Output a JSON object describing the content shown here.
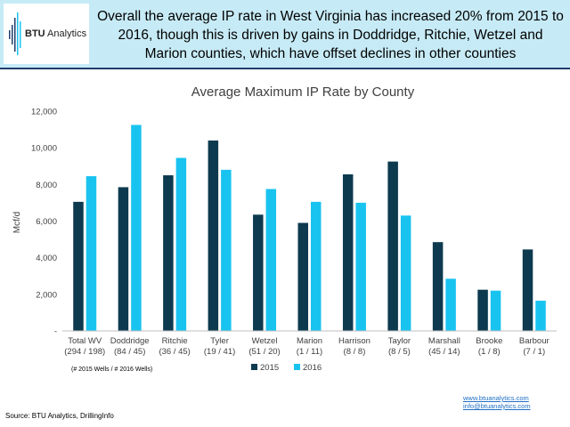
{
  "header": {
    "logo_bold": "BTU",
    "logo_rest": " Analytics",
    "headline": "Overall the average IP rate in West Virginia has increased 20% from 2015 to 2016, though this is driven by gains in Doddridge, Ritchie, Wetzel and Marion counties, which have offset declines in other counties"
  },
  "chart_data": {
    "type": "bar",
    "title": "Average Maximum IP Rate by County",
    "ylabel": "Mcf/d",
    "xlabel": "",
    "ylim": [
      0,
      12000
    ],
    "yticks": [
      0,
      2000,
      4000,
      6000,
      8000,
      10000,
      12000
    ],
    "ytick_labels": [
      "-",
      "2,000",
      "4,000",
      "6,000",
      "8,000",
      "10,000",
      "12,000"
    ],
    "categories": [
      {
        "name": "Total WV",
        "wells": "(294 / 198)"
      },
      {
        "name": "Doddridge",
        "wells": "(84 / 45)"
      },
      {
        "name": "Ritchie",
        "wells": "(36 / 45)"
      },
      {
        "name": "Tyler",
        "wells": "(19 / 41)"
      },
      {
        "name": "Wetzel",
        "wells": "(51 / 20)"
      },
      {
        "name": "Marion",
        "wells": "(1 / 11)"
      },
      {
        "name": "Harrison",
        "wells": "(8 / 8)"
      },
      {
        "name": "Taylor",
        "wells": "(8 / 5)"
      },
      {
        "name": "Marshall",
        "wells": "(45 / 14)"
      },
      {
        "name": "Brooke",
        "wells": "(1 / 8)"
      },
      {
        "name": "Barbour",
        "wells": "(7 / 1)"
      }
    ],
    "series": [
      {
        "name": "2015",
        "color": "#0d3a4f",
        "values": [
          7050,
          7850,
          8500,
          10400,
          6350,
          5900,
          8550,
          9250,
          4850,
          2250,
          4450
        ]
      },
      {
        "name": "2016",
        "color": "#19c3f0",
        "values": [
          8450,
          11250,
          9450,
          8800,
          7750,
          7050,
          7000,
          6300,
          2850,
          2200,
          1650
        ]
      }
    ],
    "legend_position": "bottom",
    "grid": false,
    "note": "(# 2015 Wells / # 2016 Wells)"
  },
  "footer": {
    "link1": "www.btuanalytics.com",
    "link2": "info@btuanalytics.com",
    "source": "Source: BTU Analytics, DrillingInfo"
  }
}
